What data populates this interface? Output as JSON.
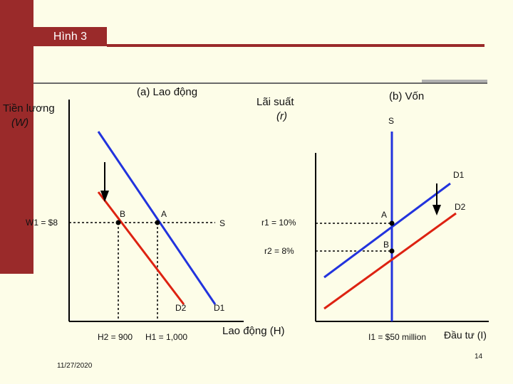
{
  "slide": {
    "title": "Hình 3",
    "date": "11/27/2020",
    "page_number": "14"
  },
  "panel_a": {
    "heading": "(a) Lao động",
    "y_axis_label_line1": "Tiền lương",
    "y_axis_label_line2": "(W)",
    "x_axis_label": "Lao động (H)",
    "wage_label": "W1 = $8",
    "h2_label": "H2 = 900",
    "h1_label": "H1 = 1,000",
    "point_b": "B",
    "point_a": "A",
    "supply_label": "S",
    "d2_label": "D2",
    "d1_label": "D1",
    "colors": {
      "d1": "#2233dd",
      "d2": "#dd2211",
      "axis": "#000000"
    }
  },
  "panel_b": {
    "heading": "(b) Vốn",
    "y_axis_label_line1": "Lãi suất",
    "y_axis_label_line2": "(r)",
    "x_axis_label": "Đầu tư (I)",
    "r1_label": "r1 = 10%",
    "r2_label": "r2 = 8%",
    "i1_label": "I1 = $50 million",
    "point_a": "A",
    "point_b": "B",
    "supply_label": "S",
    "d1_label": "D1",
    "d2_label": "D2",
    "colors": {
      "d1": "#2233dd",
      "d2": "#dd2211",
      "supply": "#2233dd"
    }
  }
}
